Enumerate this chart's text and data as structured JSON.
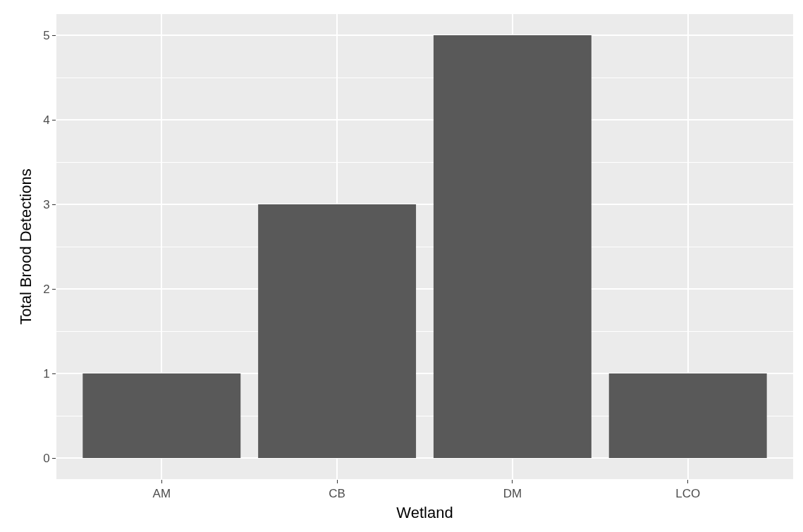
{
  "chart_data": {
    "type": "bar",
    "xlabel": "Wetland",
    "ylabel": "Total Brood Detections",
    "categories": [
      "AM",
      "CB",
      "DM",
      "LCO"
    ],
    "values": [
      1,
      3,
      5,
      1
    ],
    "color": "#595959",
    "ylim": [
      -0.25,
      5.25
    ],
    "yticks": [
      0,
      1,
      2,
      3,
      4,
      5
    ],
    "grid": true
  }
}
